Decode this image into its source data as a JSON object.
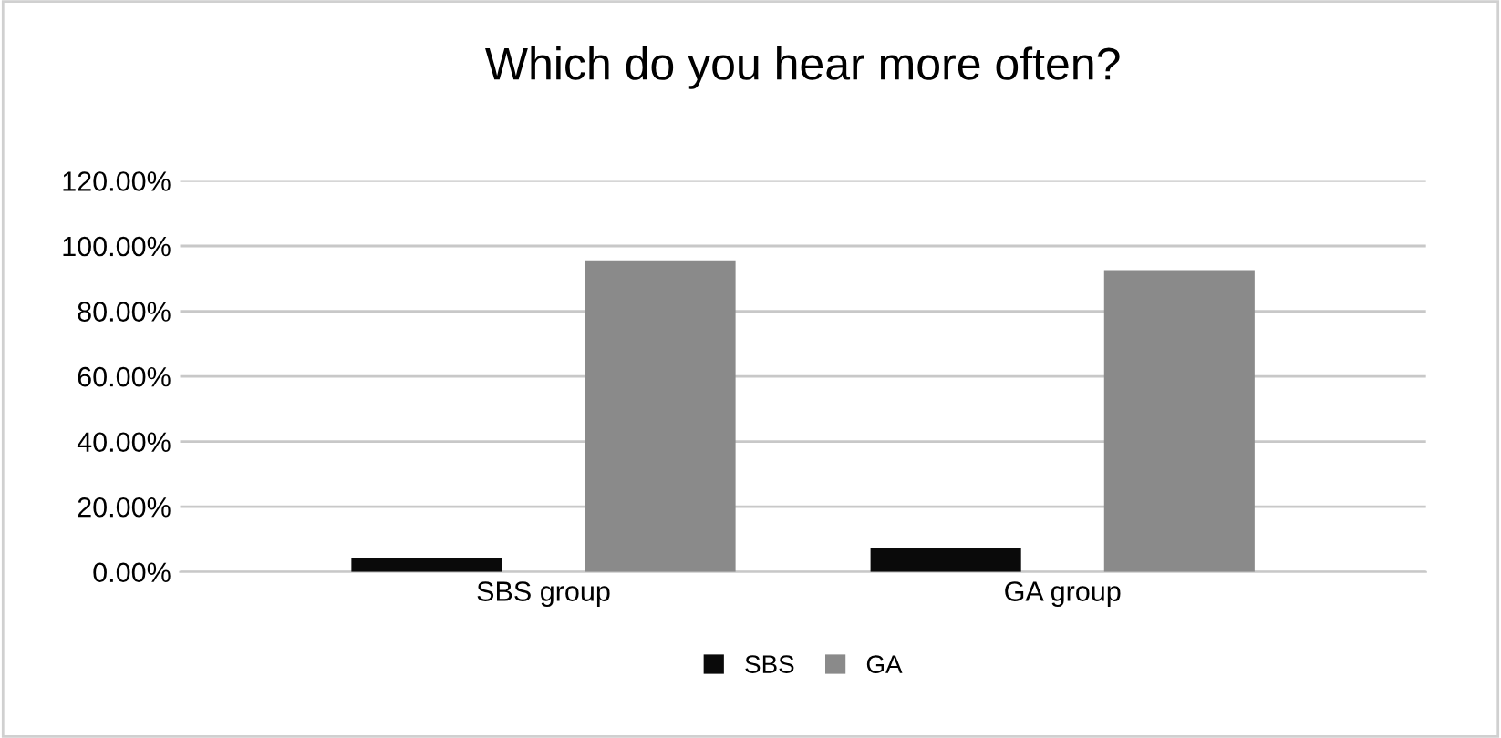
{
  "chart_data": {
    "type": "bar",
    "title": "Which do you hear more often?",
    "categories": [
      "SBS group",
      "GA group"
    ],
    "series": [
      {
        "name": "SBS",
        "color": "#0a0a0a",
        "values": [
          4.4,
          7.4
        ]
      },
      {
        "name": "GA",
        "color": "#8a8a8a",
        "values": [
          95.6,
          92.6
        ]
      }
    ],
    "ylim": [
      0,
      120
    ],
    "yticks": [
      {
        "value": 0,
        "label": "0.00%"
      },
      {
        "value": 20,
        "label": "20.00%"
      },
      {
        "value": 40,
        "label": "40.00%"
      },
      {
        "value": 60,
        "label": "60.00%"
      },
      {
        "value": 80,
        "label": "80.00%"
      },
      {
        "value": 100,
        "label": "100.00%"
      },
      {
        "value": 120,
        "label": "120.00%"
      }
    ],
    "grid": "y",
    "legend": "bottom"
  }
}
